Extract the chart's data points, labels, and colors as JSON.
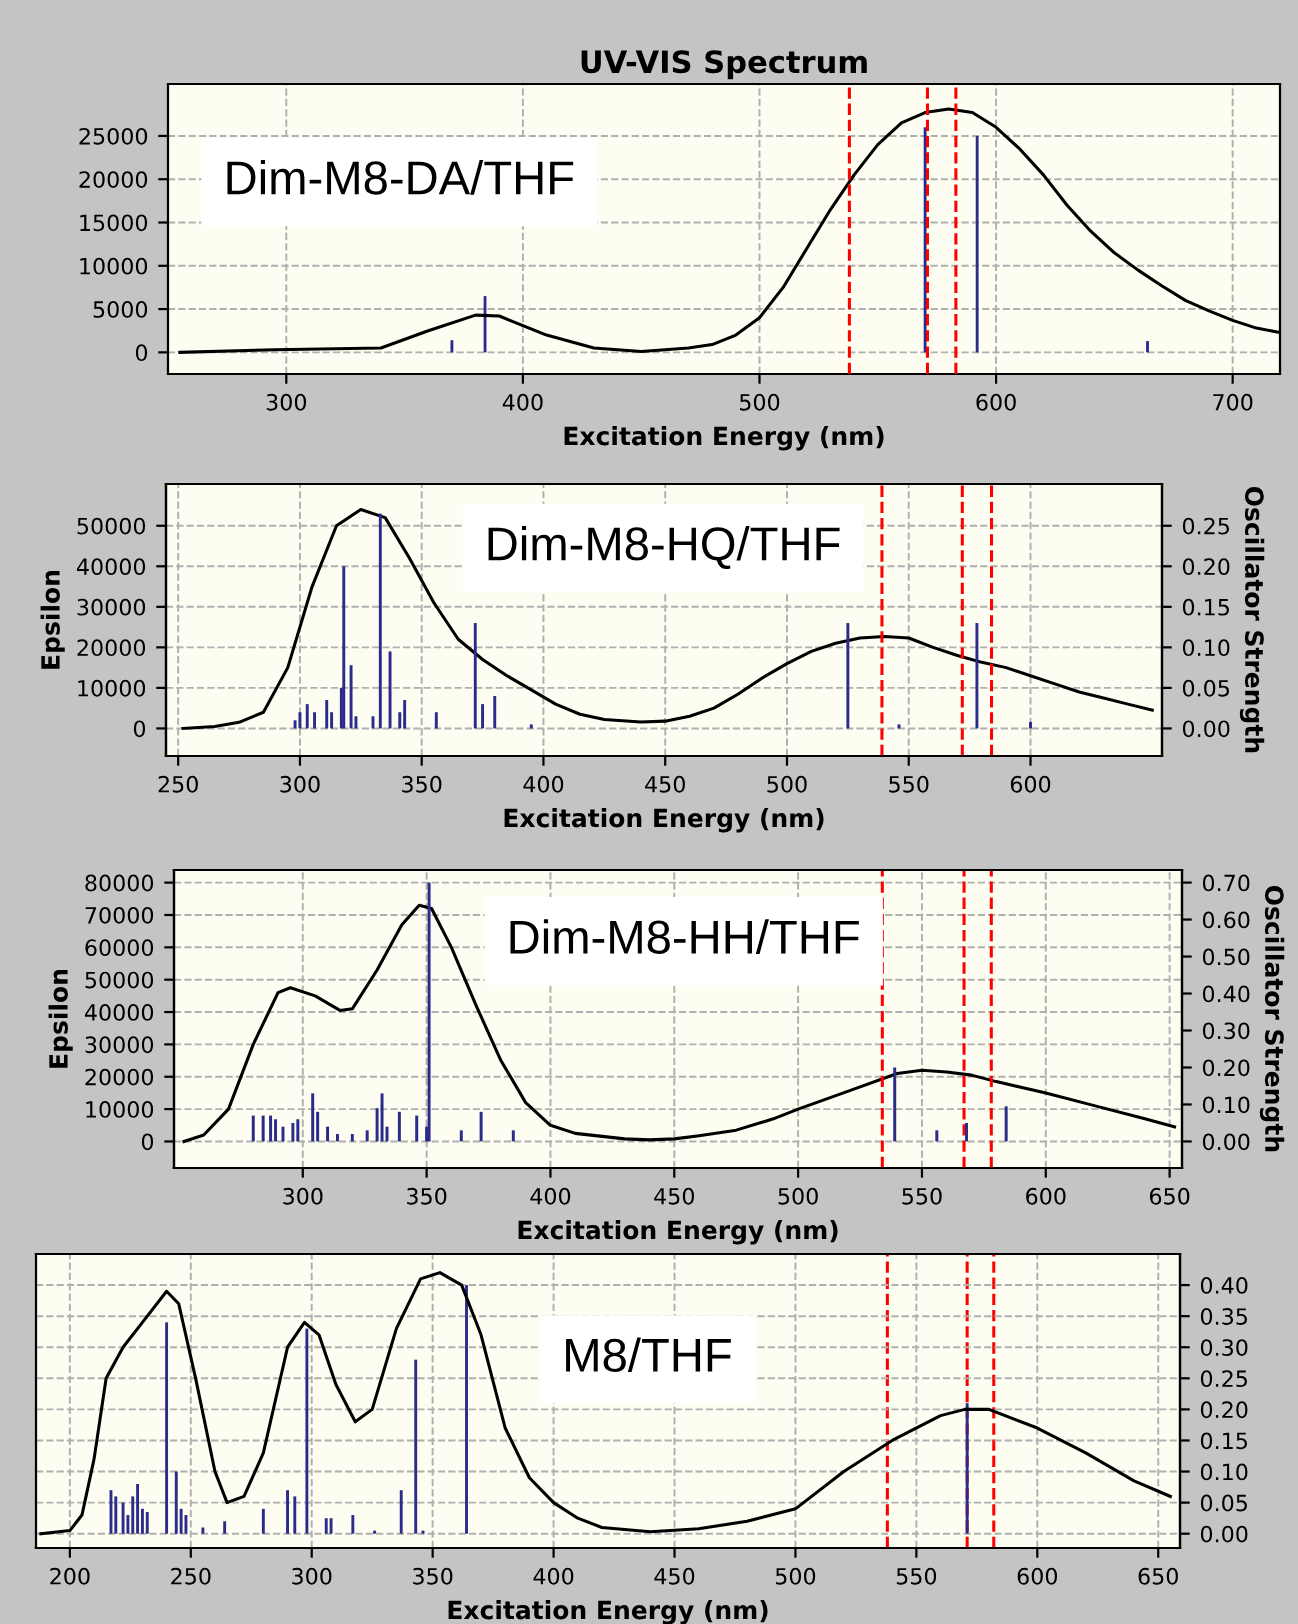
{
  "chart_data": [
    {
      "type": "line",
      "title": "UV-VIS Spectrum",
      "xlabel": "Excitation Energy (nm)",
      "annotations": [
        "Dim-M8-DA/THF"
      ],
      "xlim": [
        250,
        720
      ],
      "xticks": [
        300,
        400,
        500,
        600,
        700
      ],
      "ylim": [
        -2500,
        31000
      ],
      "yticks": [
        0,
        5000,
        10000,
        15000,
        20000,
        25000
      ],
      "grid": true,
      "legend": false,
      "ref_lines": [
        {
          "axis": "x",
          "value": 538,
          "color": "#ff0000",
          "line_style": "dashed"
        },
        {
          "axis": "x",
          "value": 571,
          "color": "#ff0000",
          "line_style": "dashed"
        },
        {
          "axis": "x",
          "value": 583,
          "color": "#ff0000",
          "line_style": "dashed"
        }
      ],
      "series": [
        {
          "color": "#000000",
          "x": [
            255,
            295,
            340,
            360,
            380,
            390,
            410,
            430,
            450,
            470,
            480,
            490,
            500,
            510,
            520,
            530,
            540,
            550,
            560,
            570,
            580,
            590,
            600,
            610,
            620,
            630,
            640,
            650,
            660,
            670,
            680,
            690,
            700,
            710,
            720
          ],
          "values": [
            0,
            300,
            500,
            2500,
            4300,
            4200,
            2000,
            500,
            100,
            500,
            900,
            2000,
            4000,
            7500,
            12000,
            16500,
            20500,
            24000,
            26500,
            27700,
            28100,
            27700,
            26000,
            23500,
            20500,
            17000,
            14000,
            11500,
            9500,
            7700,
            6000,
            4800,
            3700,
            2800,
            2300
          ]
        },
        {
          "type": "bar",
          "color": "#2b2b8a",
          "x": [
            370,
            384,
            570,
            592,
            664
          ],
          "values": [
            1400,
            6500,
            26000,
            25000,
            1300
          ]
        }
      ]
    },
    {
      "type": "line",
      "xlabel": "Excitation Energy (nm)",
      "ylabel": "Epsilon",
      "y2label": "Oscillator Strength",
      "annotations": [
        "Dim-M8-HQ/THF"
      ],
      "xlim": [
        245,
        654
      ],
      "xticks": [
        250,
        300,
        350,
        400,
        450,
        500,
        550,
        600
      ],
      "ylim": [
        -6800,
        60300
      ],
      "yticks": [
        0,
        10000,
        20000,
        30000,
        40000,
        50000
      ],
      "y2lim": [
        -0.034,
        0.3015
      ],
      "y2ticks": [
        {
          "value": 0,
          "label": "0.00"
        },
        {
          "value": 0.05,
          "label": "0.05"
        },
        {
          "value": 0.1,
          "label": "0.10"
        },
        {
          "value": 0.15,
          "label": "0.15"
        },
        {
          "value": 0.2,
          "label": "0.20"
        },
        {
          "value": 0.25,
          "label": "0.25"
        }
      ],
      "grid": true,
      "legend": false,
      "ref_lines": [
        {
          "axis": "x",
          "value": 539,
          "color": "#ff0000",
          "line_style": "dashed"
        },
        {
          "axis": "x",
          "value": 572,
          "color": "#ff0000",
          "line_style": "dashed"
        },
        {
          "axis": "x",
          "value": 584,
          "color": "#ff0000",
          "line_style": "dashed"
        }
      ],
      "series": [
        {
          "color": "#000000",
          "x": [
            252,
            265,
            275,
            285,
            295,
            305,
            315,
            325,
            335,
            345,
            355,
            365,
            375,
            385,
            395,
            405,
            415,
            425,
            440,
            450,
            460,
            470,
            480,
            490,
            500,
            510,
            520,
            530,
            540,
            550,
            560,
            570,
            580,
            590,
            600,
            610,
            620,
            630,
            640,
            650
          ],
          "values": [
            0,
            500,
            1500,
            4000,
            15000,
            35000,
            50000,
            54000,
            52000,
            42000,
            31000,
            22000,
            17000,
            13000,
            9500,
            6000,
            3500,
            2200,
            1600,
            1800,
            3000,
            5000,
            8500,
            12500,
            16000,
            19000,
            21000,
            22300,
            22700,
            22300,
            20000,
            18000,
            16300,
            15000,
            13000,
            11000,
            9000,
            7500,
            6000,
            4500
          ]
        },
        {
          "type": "bar",
          "axis": "y2",
          "color": "#2b2b8a",
          "x": [
            298,
            300,
            303,
            306,
            311,
            313,
            317,
            318,
            321,
            323,
            330,
            333,
            337,
            341,
            343,
            356,
            372,
            375,
            380,
            395,
            525,
            546,
            578,
            600
          ],
          "values": [
            0.01,
            0.02,
            0.03,
            0.02,
            0.035,
            0.02,
            0.05,
            0.2,
            0.078,
            0.015,
            0.015,
            0.265,
            0.095,
            0.02,
            0.035,
            0.02,
            0.13,
            0.03,
            0.04,
            0.005,
            0.13,
            0.005,
            0.13,
            0.008
          ]
        }
      ]
    },
    {
      "type": "line",
      "xlabel": "Excitation Energy (nm)",
      "ylabel": "Epsilon",
      "y2label": "Oscillator Strength",
      "annotations": [
        "Dim-M8-HH/THF"
      ],
      "xlim": [
        248,
        655
      ],
      "xticks": [
        300,
        350,
        400,
        450,
        500,
        550,
        600,
        650
      ],
      "ylim": [
        -8200,
        83900
      ],
      "yticks": [
        0,
        10000,
        20000,
        30000,
        40000,
        50000,
        60000,
        70000,
        80000
      ],
      "y2lim": [
        -0.0718,
        0.734
      ],
      "y2ticks": [
        {
          "value": 0,
          "label": "0.00"
        },
        {
          "value": 0.1,
          "label": "0.10"
        },
        {
          "value": 0.2,
          "label": "0.20"
        },
        {
          "value": 0.3,
          "label": "0.30"
        },
        {
          "value": 0.4,
          "label": "0.40"
        },
        {
          "value": 0.5,
          "label": "0.50"
        },
        {
          "value": 0.6,
          "label": "0.60"
        },
        {
          "value": 0.7,
          "label": "0.70"
        }
      ],
      "grid": true,
      "legend": false,
      "ref_lines": [
        {
          "axis": "x",
          "value": 534,
          "color": "#ff0000",
          "line_style": "dashed"
        },
        {
          "axis": "x",
          "value": 567,
          "color": "#ff0000",
          "line_style": "dashed"
        },
        {
          "axis": "x",
          "value": 578,
          "color": "#ff0000",
          "line_style": "dashed"
        }
      ],
      "series": [
        {
          "color": "#000000",
          "x": [
            252,
            260,
            270,
            280,
            290,
            295,
            305,
            315,
            320,
            330,
            340,
            347,
            352,
            360,
            370,
            380,
            390,
            400,
            410,
            430,
            440,
            450,
            460,
            475,
            490,
            500,
            520,
            540,
            550,
            560,
            570,
            580,
            600,
            620,
            640,
            652
          ],
          "values": [
            0,
            2000,
            10000,
            30000,
            46000,
            47500,
            45000,
            40500,
            41000,
            53000,
            67000,
            73000,
            72000,
            60000,
            42000,
            25000,
            12000,
            5000,
            2500,
            800,
            500,
            800,
            1800,
            3500,
            7000,
            10000,
            15500,
            21000,
            22000,
            21500,
            20500,
            18500,
            15000,
            11000,
            7000,
            4500
          ]
        },
        {
          "type": "bar",
          "axis": "y2",
          "color": "#2b2b8a",
          "x": [
            280,
            284,
            287,
            289,
            292,
            296,
            298,
            304,
            306,
            310,
            314,
            320,
            326,
            330,
            332,
            334,
            339,
            346,
            350,
            351,
            364,
            372,
            385,
            539,
            556,
            568,
            584
          ],
          "values": [
            0.07,
            0.07,
            0.07,
            0.06,
            0.04,
            0.05,
            0.06,
            0.13,
            0.08,
            0.04,
            0.02,
            0.02,
            0.03,
            0.09,
            0.13,
            0.04,
            0.08,
            0.07,
            0.04,
            0.7,
            0.03,
            0.08,
            0.03,
            0.2,
            0.03,
            0.05,
            0.095
          ]
        }
      ]
    },
    {
      "type": "line",
      "xlabel": "Excitation Energy (nm)",
      "annotations": [
        "M8/THF"
      ],
      "xlim": [
        186,
        659
      ],
      "xticks": [
        200,
        250,
        300,
        350,
        400,
        450,
        500,
        550,
        600,
        650
      ],
      "y2lim": [
        -0.023,
        0.45
      ],
      "y2ticks": [
        {
          "value": 0,
          "label": "0.00"
        },
        {
          "value": 0.05,
          "label": "0.05"
        },
        {
          "value": 0.1,
          "label": "0.10"
        },
        {
          "value": 0.15,
          "label": "0.15"
        },
        {
          "value": 0.2,
          "label": "0.20"
        },
        {
          "value": 0.25,
          "label": "0.25"
        },
        {
          "value": 0.3,
          "label": "0.30"
        },
        {
          "value": 0.35,
          "label": "0.35"
        },
        {
          "value": 0.4,
          "label": "0.40"
        }
      ],
      "grid": true,
      "legend": false,
      "ref_lines": [
        {
          "axis": "x",
          "value": 538,
          "color": "#ff0000",
          "line_style": "dashed"
        },
        {
          "axis": "x",
          "value": 571,
          "color": "#ff0000",
          "line_style": "dashed"
        },
        {
          "axis": "x",
          "value": 582,
          "color": "#ff0000",
          "line_style": "dashed"
        }
      ],
      "series": [
        {
          "axis": "y2",
          "color": "#000000",
          "x": [
            188,
            200,
            205,
            210,
            215,
            222,
            230,
            240,
            245,
            252,
            260,
            265,
            272,
            280,
            290,
            297,
            303,
            310,
            318,
            325,
            335,
            345,
            353,
            362,
            370,
            380,
            390,
            400,
            410,
            420,
            440,
            460,
            480,
            500,
            520,
            540,
            560,
            570,
            580,
            600,
            620,
            640,
            655
          ],
          "values": [
            0,
            0.005,
            0.03,
            0.12,
            0.25,
            0.3,
            0.34,
            0.39,
            0.37,
            0.25,
            0.1,
            0.05,
            0.06,
            0.13,
            0.3,
            0.34,
            0.32,
            0.24,
            0.18,
            0.2,
            0.33,
            0.41,
            0.42,
            0.4,
            0.32,
            0.17,
            0.09,
            0.05,
            0.025,
            0.01,
            0.003,
            0.008,
            0.02,
            0.04,
            0.1,
            0.15,
            0.19,
            0.2,
            0.2,
            0.17,
            0.13,
            0.085,
            0.06
          ]
        },
        {
          "type": "bar",
          "axis": "y2",
          "color": "#2b2b8a",
          "x": [
            217,
            219,
            222,
            224,
            226,
            228,
            230,
            232,
            240,
            244,
            246,
            248,
            255,
            264,
            280,
            290,
            293,
            298,
            306,
            308,
            317,
            326,
            337,
            343,
            346,
            364,
            571
          ],
          "values": [
            0.07,
            0.06,
            0.05,
            0.03,
            0.06,
            0.08,
            0.04,
            0.035,
            0.34,
            0.1,
            0.04,
            0.03,
            0.01,
            0.02,
            0.04,
            0.07,
            0.06,
            0.33,
            0.025,
            0.025,
            0.03,
            0.005,
            0.07,
            0.28,
            0.005,
            0.4,
            0.21
          ]
        }
      ]
    }
  ]
}
